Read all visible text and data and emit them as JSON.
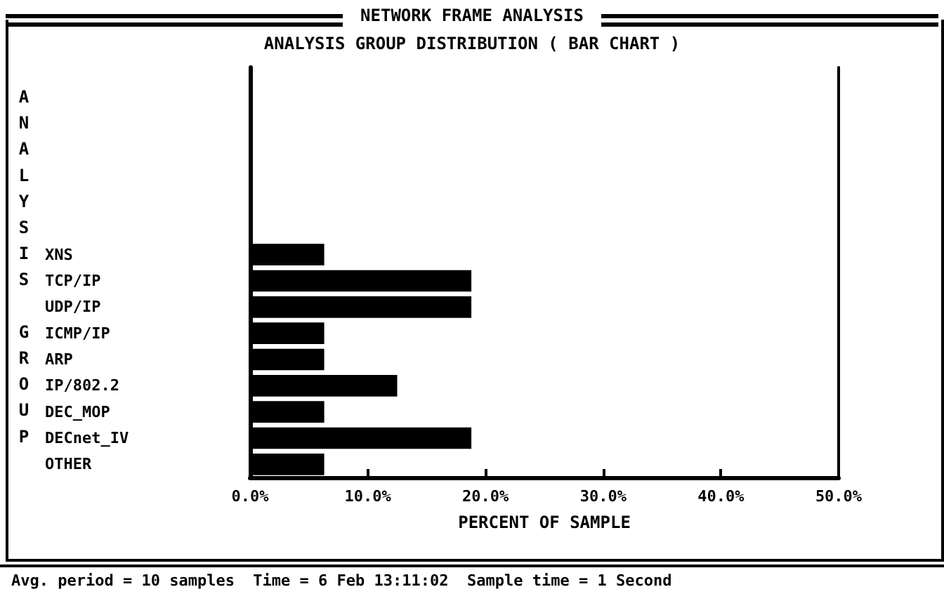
{
  "chart_data": {
    "type": "bar",
    "orientation": "horizontal",
    "title": "NETWORK FRAME ANALYSIS",
    "subtitle": "ANALYSIS GROUP DISTRIBUTION ( BAR CHART )",
    "xlabel": "PERCENT OF SAMPLE",
    "ylabel": "ANALYSIS GROUP",
    "annotations": [
      "Avg. period = 10 samples  Time = 6 Feb 13:11:02  Sample time = 1 Second"
    ],
    "categories": [
      "XNS",
      "TCP/IP",
      "UDP/IP",
      "ICMP/IP",
      "ARP",
      "IP/802.2",
      "DEC_MOP",
      "DECnet_IV",
      "OTHER"
    ],
    "values": [
      6.3,
      18.8,
      18.8,
      6.3,
      6.3,
      12.5,
      6.3,
      18.8,
      6.3
    ],
    "color": "#000000",
    "xlim": [
      0,
      50
    ],
    "xticks": [
      {
        "value": 0,
        "label": "0.0%"
      },
      {
        "value": 10,
        "label": "10.0%"
      },
      {
        "value": 20,
        "label": "20.0%"
      },
      {
        "value": 30,
        "label": "30.0%"
      },
      {
        "value": 40,
        "label": "40.0%"
      },
      {
        "value": 50,
        "label": "50.0%"
      }
    ],
    "grid": false
  }
}
